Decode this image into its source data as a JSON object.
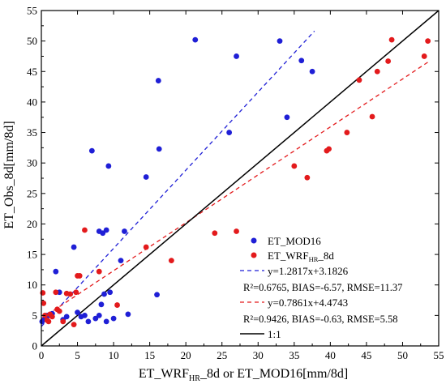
{
  "chart_data": {
    "type": "scatter",
    "xlabel_main": "ET_WRF",
    "xlabel_sub": "HR",
    "xlabel_rest": "_8d or ET_MOD16[mm/8d]",
    "ylabel": "ET_Obs_8d[mm/8d]",
    "xlim": [
      0,
      55
    ],
    "ylim": [
      0,
      55
    ],
    "xticks": [
      "0",
      "5",
      "10",
      "15",
      "20",
      "25",
      "30",
      "35",
      "40",
      "45",
      "50",
      "55"
    ],
    "yticks": [
      "0",
      "5",
      "10",
      "15",
      "20",
      "25",
      "30",
      "35",
      "40",
      "45",
      "50",
      "55"
    ],
    "grid": false,
    "legend_position": "bottom-right",
    "series": [
      {
        "name": "ET_MOD16",
        "color": "#1f1fd6",
        "points": [
          [
            0.1,
            4.0
          ],
          [
            0.5,
            4.5
          ],
          [
            0.8,
            5.0
          ],
          [
            1.0,
            5.0
          ],
          [
            1.5,
            5.3
          ],
          [
            2.0,
            12.2
          ],
          [
            2.5,
            8.8
          ],
          [
            3.0,
            4.3
          ],
          [
            3.5,
            4.8
          ],
          [
            4.5,
            16.2
          ],
          [
            5.0,
            5.5
          ],
          [
            5.5,
            4.8
          ],
          [
            6.0,
            5.0
          ],
          [
            6.5,
            4.0
          ],
          [
            7.0,
            32.0
          ],
          [
            7.5,
            4.5
          ],
          [
            8.0,
            5.0
          ],
          [
            8.3,
            6.8
          ],
          [
            8.7,
            8.5
          ],
          [
            8.5,
            18.5
          ],
          [
            8.0,
            18.8
          ],
          [
            9.0,
            19.0
          ],
          [
            9.0,
            4.0
          ],
          [
            9.3,
            29.5
          ],
          [
            9.5,
            8.8
          ],
          [
            10.0,
            4.5
          ],
          [
            11.0,
            14.0
          ],
          [
            11.5,
            18.8
          ],
          [
            12.0,
            5.2
          ],
          [
            14.5,
            27.7
          ],
          [
            16.0,
            8.4
          ],
          [
            16.2,
            43.5
          ],
          [
            16.3,
            32.3
          ],
          [
            21.3,
            50.2
          ],
          [
            26.0,
            35.0
          ],
          [
            27.0,
            47.5
          ],
          [
            33.0,
            50.0
          ],
          [
            34.0,
            37.5
          ],
          [
            36.0,
            46.8
          ],
          [
            37.5,
            45.0
          ]
        ]
      },
      {
        "name": "ET_WRF",
        "name_sub": "HR",
        "name_rest": "_8d",
        "color": "#e31a1c",
        "points": [
          [
            0.2,
            8.7
          ],
          [
            0.3,
            7.0
          ],
          [
            0.5,
            5.0
          ],
          [
            0.8,
            4.2
          ],
          [
            1.0,
            4.0
          ],
          [
            1.2,
            5.2
          ],
          [
            1.5,
            4.8
          ],
          [
            2.0,
            8.8
          ],
          [
            2.2,
            6.0
          ],
          [
            2.5,
            5.7
          ],
          [
            3.0,
            4.0
          ],
          [
            3.5,
            8.6
          ],
          [
            4.0,
            8.5
          ],
          [
            4.5,
            3.5
          ],
          [
            4.8,
            8.8
          ],
          [
            5.0,
            11.5
          ],
          [
            5.3,
            11.5
          ],
          [
            6.0,
            19.0
          ],
          [
            8.0,
            12.2
          ],
          [
            10.5,
            6.7
          ],
          [
            14.5,
            16.2
          ],
          [
            18.0,
            14.0
          ],
          [
            24.0,
            18.5
          ],
          [
            27.0,
            18.8
          ],
          [
            35.0,
            29.5
          ],
          [
            36.8,
            27.6
          ],
          [
            39.5,
            32.0
          ],
          [
            39.8,
            32.3
          ],
          [
            42.3,
            35.0
          ],
          [
            44.0,
            43.6
          ],
          [
            45.8,
            37.6
          ],
          [
            46.5,
            45.0
          ],
          [
            48.0,
            46.7
          ],
          [
            48.5,
            50.2
          ],
          [
            53.0,
            47.5
          ],
          [
            53.5,
            50.0
          ]
        ]
      }
    ],
    "fits": [
      {
        "label": "y=1.2817x+3.1826",
        "color": "#1f1fd6",
        "slope": 1.2817,
        "intercept": 3.1826,
        "x_range": [
          0,
          37.8
        ],
        "dash": true
      },
      {
        "label": "y=0.7861x+4.4743",
        "color": "#e31a1c",
        "slope": 0.7861,
        "intercept": 4.4743,
        "x_range": [
          0,
          53.5
        ],
        "dash": true
      },
      {
        "label": "1:1",
        "color": "#000000",
        "slope": 1,
        "intercept": 0,
        "x_range": [
          0,
          55
        ],
        "dash": false
      }
    ],
    "stats": {
      "mod16": "R²=0.6765, BIAS=-6.57, RMSE=11.37",
      "wrf": "R²=0.9426, BIAS=-0.63, RMSE=5.58"
    }
  }
}
